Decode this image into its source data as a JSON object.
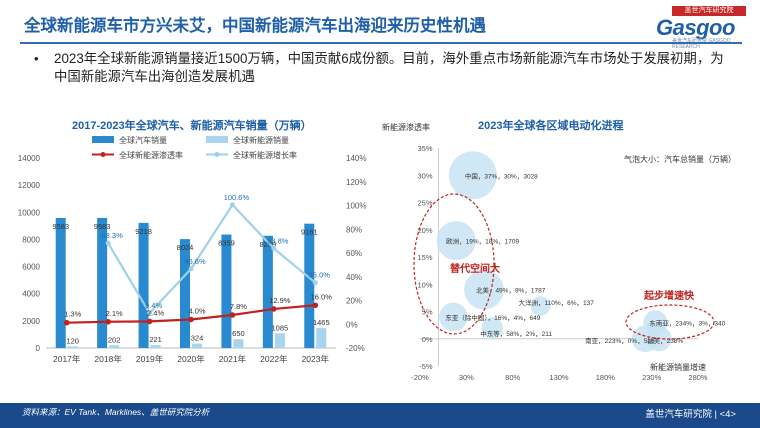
{
  "slide": {
    "title": "全球新能源车市方兴未艾，中国新能源汽车出海迎来历史性机遇",
    "bullet": "2023年全球新能源销量接近1500万辆，中国贡献6成份额。目前，海外重点市场新能源汽车市场处于发展初期，为中国新能源汽车出海创造发展机遇",
    "bullet_marker": "•",
    "logo_tag": "盖世汽车研究院",
    "logo_text": "Gasgoo",
    "logo_sub": "盖世汽车研究院 GASGOO RESEARCH"
  },
  "footer": {
    "source": "资料来源：EV Tank、Marklines、盖世研究院分析",
    "org": "盖世汽车研究院 | <4>"
  },
  "colors": {
    "title": "#1f5fa8",
    "bar_total": "#2a8ad0",
    "bar_nev": "#a9d4ee",
    "line_penetration": "#c0221d",
    "line_growth": "#9ed1e8",
    "bubble": "#c8e3f3",
    "highlight": "#c0221d",
    "footer": "#1a4a8a"
  },
  "chart_data": [
    {
      "type": "bar",
      "title": "2017-2023年全球汽车、新能源汽车销量（万辆）",
      "categories": [
        "2017年",
        "2018年",
        "2019年",
        "2020年",
        "2021年",
        "2022年",
        "2023年"
      ],
      "series": [
        {
          "name": "全球汽车销量",
          "kind": "bar",
          "axis": "left",
          "values": [
            9583,
            9583,
            9218,
            8024,
            8359,
            8269,
            9161
          ],
          "labels": [
            "9583",
            "9583",
            "9218",
            "8024",
            "8359",
            "8269",
            "9161"
          ]
        },
        {
          "name": "全球新能源销量",
          "kind": "bar",
          "axis": "left",
          "values": [
            120,
            202,
            221,
            324,
            650,
            1085,
            1465
          ],
          "labels": [
            "120",
            "202",
            "221",
            "324",
            "650",
            "1085",
            "1465"
          ]
        },
        {
          "name": "全球新能源渗透率",
          "kind": "line",
          "axis": "right",
          "values": [
            1.3,
            2.1,
            2.4,
            4.0,
            7.8,
            12.9,
            16.0
          ],
          "labels": [
            "1.3%",
            "2.1%",
            "2.4%",
            "4.0%",
            "7.8%",
            "12.9%",
            "16.0%"
          ]
        },
        {
          "name": "全球新能源增长率",
          "kind": "line",
          "axis": "right",
          "values": [
            null,
            68.3,
            9.4,
            46.6,
            100.6,
            63.8,
            35.0
          ],
          "labels": [
            "",
            "68.3%",
            "9.4%",
            "46.6%",
            "100.6%",
            "63.8%",
            "35.0%"
          ]
        }
      ],
      "y_left": {
        "min": 0,
        "max": 14000,
        "ticks": [
          "0",
          "2000",
          "4000",
          "6000",
          "8000",
          "10000",
          "12000",
          "14000"
        ]
      },
      "y_right": {
        "min": -20,
        "max": 140,
        "ticks": [
          "-20%",
          "0%",
          "20%",
          "40%",
          "60%",
          "80%",
          "100%",
          "120%",
          "140%"
        ]
      },
      "legend_position": "top",
      "grid": false
    },
    {
      "type": "scatter",
      "subtype": "bubble",
      "title": "2023年全球各区域电动化进程",
      "ylabel": "新能源渗透率",
      "xlabel": "新能源销量增速",
      "size_legend": "气泡大小：汽车总销量（万辆）",
      "x_ticks": [
        "-20%",
        "30%",
        "80%",
        "130%",
        "180%",
        "230%",
        "280%"
      ],
      "y_ticks": [
        "-5%",
        "0%",
        "5%",
        "10%",
        "15%",
        "20%",
        "25%",
        "30%",
        "35%"
      ],
      "xlim": [
        -20,
        280
      ],
      "ylim": [
        -5,
        35
      ],
      "points": [
        {
          "label": "中国，37%，30%，3028",
          "growth": 37,
          "penetration": 30,
          "size": 3028
        },
        {
          "label": "欧洲，19%，18%，1709",
          "growth": 19,
          "penetration": 18,
          "size": 1709
        },
        {
          "label": "北美，49%，9%，1787",
          "growth": 49,
          "penetration": 9,
          "size": 1787
        },
        {
          "label": "东亚（除中国），16%，4%，649",
          "growth": 16,
          "penetration": 4,
          "size": 649
        },
        {
          "label": "中东等，58%，2%，211",
          "growth": 58,
          "penetration": 2,
          "size": 211
        },
        {
          "label": "大洋洲，110%，6%，137",
          "growth": 110,
          "penetration": 6,
          "size": 137
        },
        {
          "label": "东南亚，234%，3%，340",
          "growth": 234,
          "penetration": 3,
          "size": 340
        },
        {
          "label": "南亚，223%，0%，516",
          "growth": 223,
          "penetration": 0,
          "size": 516
        },
        {
          "label": "拉美，238%",
          "growth": 238,
          "penetration": 0,
          "size": 400
        }
      ],
      "annotations": [
        "替代空间大",
        "起步增速快"
      ],
      "grid": false
    }
  ]
}
